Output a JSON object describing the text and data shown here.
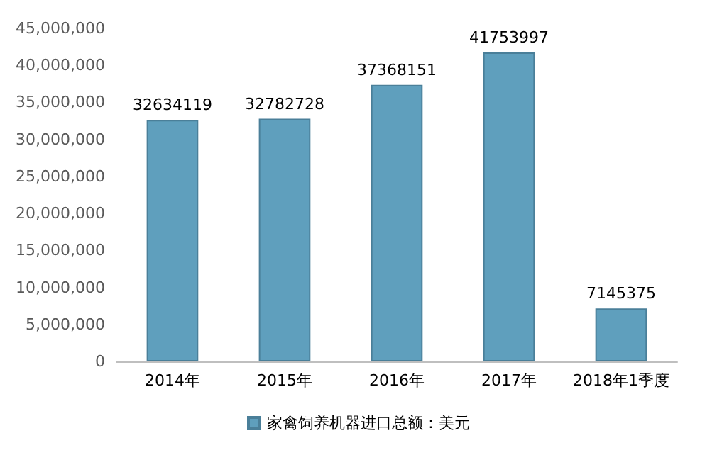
{
  "chart_data": {
    "type": "bar",
    "categories": [
      "2014年",
      "2015年",
      "2016年",
      "2017年",
      "2018年1季度"
    ],
    "series": [
      {
        "name": "家禽饲养机器进口总额：美元",
        "color": "#5f9fbd",
        "values": [
          32634119,
          32782728,
          37368151,
          41753997,
          7145375
        ]
      }
    ],
    "ylim": [
      0,
      45000000
    ],
    "yticks": [
      {
        "value": 0,
        "label": "0"
      },
      {
        "value": 5000000,
        "label": "5,000,000"
      },
      {
        "value": 10000000,
        "label": "10,000,000"
      },
      {
        "value": 15000000,
        "label": "15,000,000"
      },
      {
        "value": 20000000,
        "label": "20,000,000"
      },
      {
        "value": 25000000,
        "label": "25,000,000"
      },
      {
        "value": 30000000,
        "label": "30,000,000"
      },
      {
        "value": 35000000,
        "label": "35,000,000"
      },
      {
        "value": 40000000,
        "label": "40,000,000"
      },
      {
        "value": 45000000,
        "label": "45,000,000"
      }
    ],
    "data_labels": true,
    "legend": "bottom",
    "grid": false
  }
}
